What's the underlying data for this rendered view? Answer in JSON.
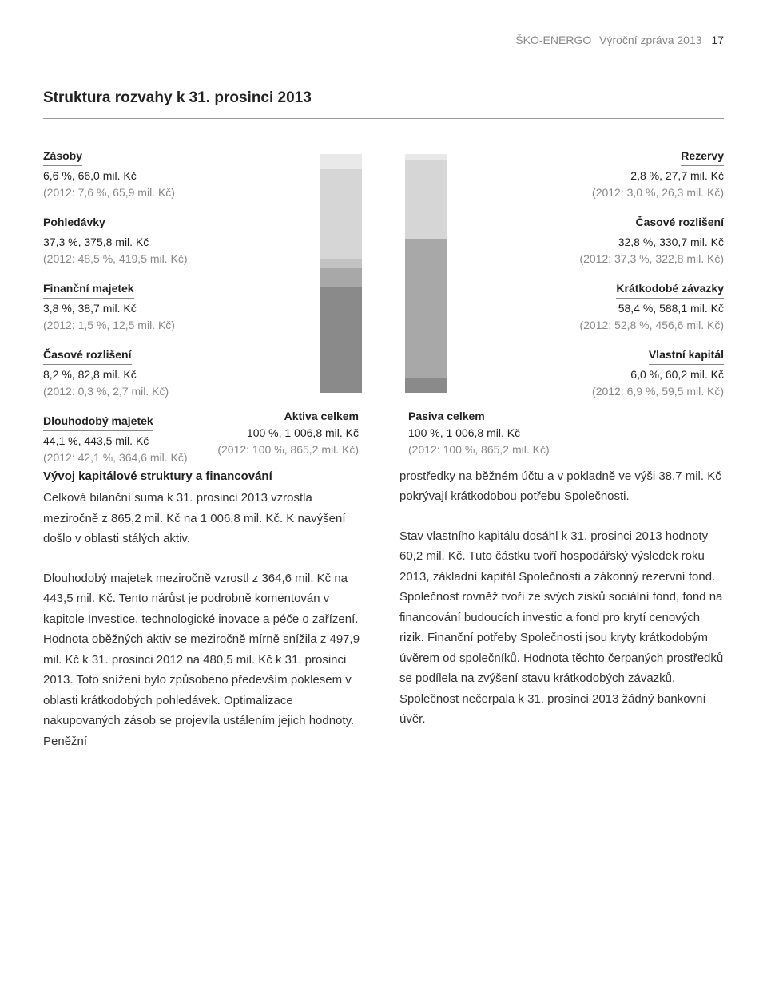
{
  "header": {
    "company": "ŠKO-ENERGO",
    "report": "Výroční zpráva 2013",
    "page_number": "17"
  },
  "section_title": "Struktura rozvahy k 31. prosinci 2013",
  "colors": {
    "text": "#333333",
    "muted": "#888888",
    "rule": "#999999",
    "bg": "#ffffff"
  },
  "aktiva": {
    "items": [
      {
        "name": "Zásoby",
        "val": "6,6 %, 66,0 mil. Kč",
        "prev": "(2012: 7,6 %, 65,9 mil. Kč)",
        "pct": 6.6,
        "color": "#e9e9e9"
      },
      {
        "name": "Pohledávky",
        "val": "37,3 %, 375,8 mil. Kč",
        "prev": "(2012: 48,5 %, 419,5 mil. Kč)",
        "pct": 37.3,
        "color": "#d6d6d6"
      },
      {
        "name": "Finanční majetek",
        "val": "3,8 %, 38,7 mil. Kč",
        "prev": "(2012: 1,5 %, 12,5 mil. Kč)",
        "pct": 3.8,
        "color": "#c2c2c2"
      },
      {
        "name": "Časové rozlišení",
        "val": "8,2 %, 82,8 mil. Kč",
        "prev": "(2012: 0,3 %, 2,7 mil. Kč)",
        "pct": 8.2,
        "color": "#a8a8a8"
      },
      {
        "name": "Dlouhodobý majetek",
        "val": "44,1 %, 443,5 mil. Kč",
        "prev": "(2012: 42,1 %, 364,6 mil. Kč)",
        "pct": 44.1,
        "color": "#8a8a8a"
      }
    ],
    "total": {
      "name": "Aktiva celkem",
      "val": "100 %, 1 006,8 mil. Kč",
      "prev": "(2012: 100 %, 865,2 mil. Kč)"
    }
  },
  "pasiva": {
    "items": [
      {
        "name": "Rezervy",
        "val": "2,8 %, 27,7 mil. Kč",
        "prev": "(2012: 3,0 %, 26,3 mil. Kč)",
        "pct": 2.8,
        "color": "#e9e9e9"
      },
      {
        "name": "Časové rozlišení",
        "val": "32,8 %, 330,7 mil. Kč",
        "prev": "(2012: 37,3 %, 322,8 mil. Kč)",
        "pct": 32.8,
        "color": "#d6d6d6"
      },
      {
        "name": "Krátkodobé závazky",
        "val": "58,4 %, 588,1 mil. Kč",
        "prev": "(2012: 52,8 %, 456,6 mil. Kč)",
        "pct": 58.4,
        "color": "#a8a8a8"
      },
      {
        "name": "Vlastní kapitál",
        "val": "6,0 %, 60,2 mil. Kč",
        "prev": "(2012: 6,9 %, 59,5 mil. Kč)",
        "pct": 6.0,
        "color": "#8a8a8a"
      }
    ],
    "total": {
      "name": "Pasiva celkem",
      "val": "100 %, 1 006,8 mil. Kč",
      "prev": "(2012: 100 %, 865,2 mil. Kč)"
    }
  },
  "body": {
    "subhead": "Vývoj kapitálové struktury a financování",
    "left_p1": "Celková bilanční suma k 31. prosinci 2013 vzrostla meziročně z 865,2 mil. Kč na 1 006,8 mil. Kč. K navýšení došlo v oblasti stálých aktiv.",
    "left_p2": "Dlouhodobý majetek meziročně vzrostl z 364,6 mil. Kč na 443,5 mil. Kč. Tento nárůst je podrobně komentován v kapitole Investice, technologické inovace a péče o zařízení. Hodnota oběžných aktiv se meziročně mírně snížila z 497,9 mil. Kč k 31. prosinci 2012 na 480,5 mil. Kč k 31. prosinci 2013. Toto snížení bylo způsobeno především poklesem v oblasti krátkodobých pohledávek. Optimalizace nakupovaných zásob se projevila ustálením jejich hodnoty. Peněžní",
    "right_p1": "prostředky na běžném účtu a v pokladně ve výši 38,7 mil. Kč pokrývají krátkodobou potřebu Společnosti.",
    "right_p2": "Stav vlastního kapitálu dosáhl k 31. prosinci 2013 hodnoty 60,2 mil. Kč. Tuto částku tvoří hospodářský výsledek roku 2013, základní kapitál Společnosti a zákonný rezervní fond. Společnost rovněž tvoří ze svých zisků sociální fond, fond na financování budoucích investic a fond pro krytí cenových rizik. Finanční potřeby Společnosti jsou kryty krátkodobým úvěrem od společníků. Hodnota těchto čerpaných prostředků se podílela na zvýšení stavu krátkodobých závazků. Společnost nečerpala k 31. prosinci 2013 žádný bankovní úvěr."
  }
}
